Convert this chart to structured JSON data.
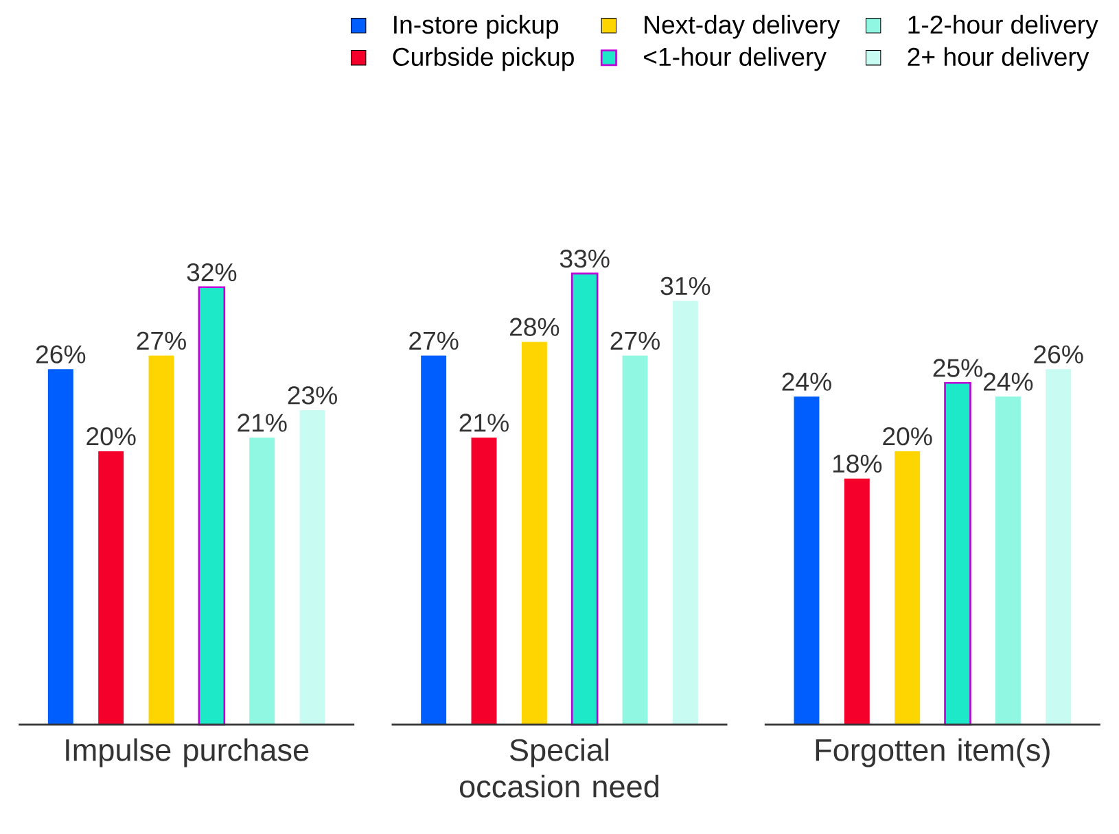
{
  "chart_data": {
    "type": "bar",
    "categories": [
      "Impulse purchase",
      "Special occasion need",
      "Forgotten item(s)"
    ],
    "series": [
      {
        "name": "In-store pickup",
        "color": "#005eff",
        "values": [
          26,
          27,
          24
        ],
        "value_labels": [
          "26%",
          "27%",
          "24%"
        ]
      },
      {
        "name": "Curbside pickup",
        "color": "#f5002a",
        "values": [
          20,
          21,
          18
        ],
        "value_labels": [
          "20%",
          "21%",
          "18%"
        ]
      },
      {
        "name": "Next-day delivery",
        "color": "#ffd500",
        "values": [
          27,
          28,
          20
        ],
        "value_labels": [
          "27%",
          "28%",
          "20%"
        ]
      },
      {
        "name": "<1-hour delivery",
        "color": "#1de9c8",
        "values": [
          32,
          33,
          25
        ],
        "value_labels": [
          "32%",
          "33%",
          "25%"
        ]
      },
      {
        "name": "1-2-hour delivery",
        "color": "#90f7e3",
        "values": [
          21,
          27,
          24
        ],
        "value_labels": [
          "21%",
          "27%",
          "24%"
        ]
      },
      {
        "name": "2+ hour delivery",
        "color": "#c8fbf1",
        "values": [
          23,
          31,
          26
        ],
        "value_labels": [
          "23%",
          "31%",
          "26%"
        ]
      }
    ],
    "legend": "top right"
  }
}
